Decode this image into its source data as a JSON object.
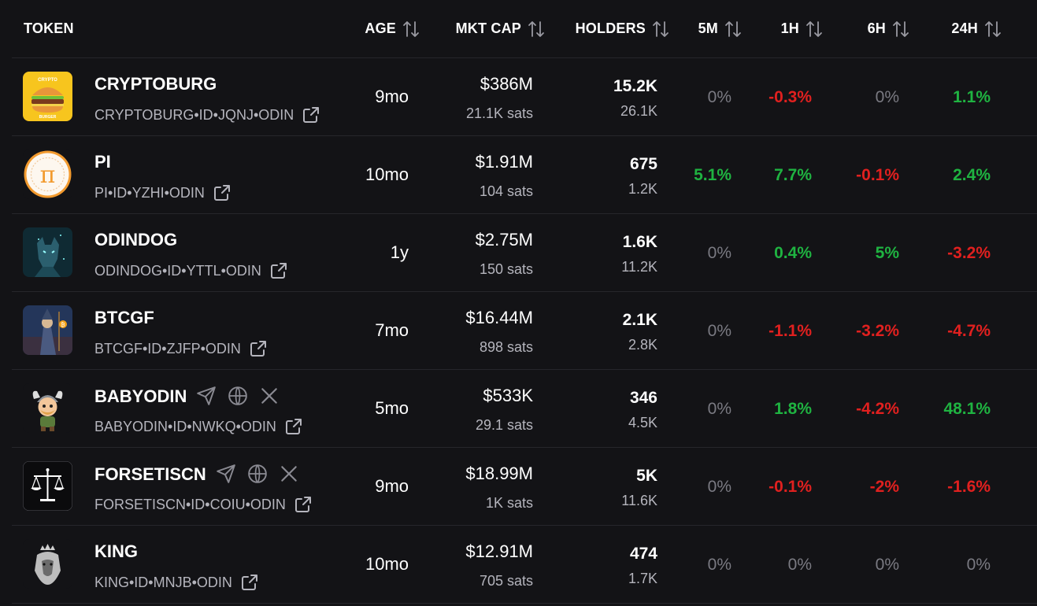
{
  "header": {
    "token": "TOKEN",
    "age": "AGE",
    "mkt_cap": "MKT CAP",
    "holders": "HOLDERS",
    "m5": "5M",
    "h1": "1H",
    "h6": "6H",
    "h24": "24H"
  },
  "colors": {
    "positive": "#1fb341",
    "negative": "#e0201f",
    "neutral": "#7a7a82",
    "background": "#131316"
  },
  "rows": [
    {
      "name": "CRYPTOBURG",
      "id": "CRYPTOBURG•ID•JQNJ•ODIN",
      "logo_text": "CRYPTO BURGER",
      "logo_icon": "burger-logo-icon",
      "age": "9mo",
      "mcap": "$386M",
      "sats": "21.1K sats",
      "holders": "15.2K",
      "holders2": "26.1K",
      "m5": "0%",
      "h1": "-0.3%",
      "h6": "0%",
      "h24": "1.1%"
    },
    {
      "name": "PI",
      "id": "PI•ID•YZHI•ODIN",
      "logo_text": "π",
      "logo_icon": "pi-logo-icon",
      "age": "10mo",
      "mcap": "$1.91M",
      "sats": "104 sats",
      "holders": "675",
      "holders2": "1.2K",
      "m5": "5.1%",
      "h1": "7.7%",
      "h6": "-0.1%",
      "h24": "2.4%"
    },
    {
      "name": "ODINDOG",
      "id": "ODINDOG•ID•YTTL•ODIN",
      "logo_icon": "wolf-logo-icon",
      "age": "1y",
      "mcap": "$2.75M",
      "sats": "150 sats",
      "holders": "1.6K",
      "holders2": "11.2K",
      "m5": "0%",
      "h1": "0.4%",
      "h6": "5%",
      "h24": "-3.2%"
    },
    {
      "name": "BTCGF",
      "id": "BTCGF•ID•ZJFP•ODIN",
      "logo_icon": "wizard-logo-icon",
      "age": "7mo",
      "mcap": "$16.44M",
      "sats": "898 sats",
      "holders": "2.1K",
      "holders2": "2.8K",
      "m5": "0%",
      "h1": "-1.1%",
      "h6": "-3.2%",
      "h24": "-4.7%"
    },
    {
      "name": "BABYODIN",
      "id": "BABYODIN•ID•NWKQ•ODIN",
      "logo_icon": "viking-baby-logo-icon",
      "age": "5mo",
      "mcap": "$533K",
      "sats": "29.1 sats",
      "holders": "346",
      "holders2": "4.5K",
      "m5": "0%",
      "h1": "1.8%",
      "h6": "-4.2%",
      "h24": "48.1%"
    },
    {
      "name": "FORSETISCN",
      "id": "FORSETISCN•ID•COIU•ODIN",
      "logo_icon": "scales-logo-icon",
      "age": "9mo",
      "mcap": "$18.99M",
      "sats": "1K sats",
      "holders": "5K",
      "holders2": "11.6K",
      "m5": "0%",
      "h1": "-0.1%",
      "h6": "-2%",
      "h24": "-1.6%"
    },
    {
      "name": "KING",
      "id": "KING•ID•MNJB•ODIN",
      "logo_icon": "crowned-lion-logo-icon",
      "age": "10mo",
      "mcap": "$12.91M",
      "sats": "705 sats",
      "holders": "474",
      "holders2": "1.7K",
      "m5": "0%",
      "h1": "0%",
      "h6": "0%",
      "h24": "0%"
    }
  ]
}
